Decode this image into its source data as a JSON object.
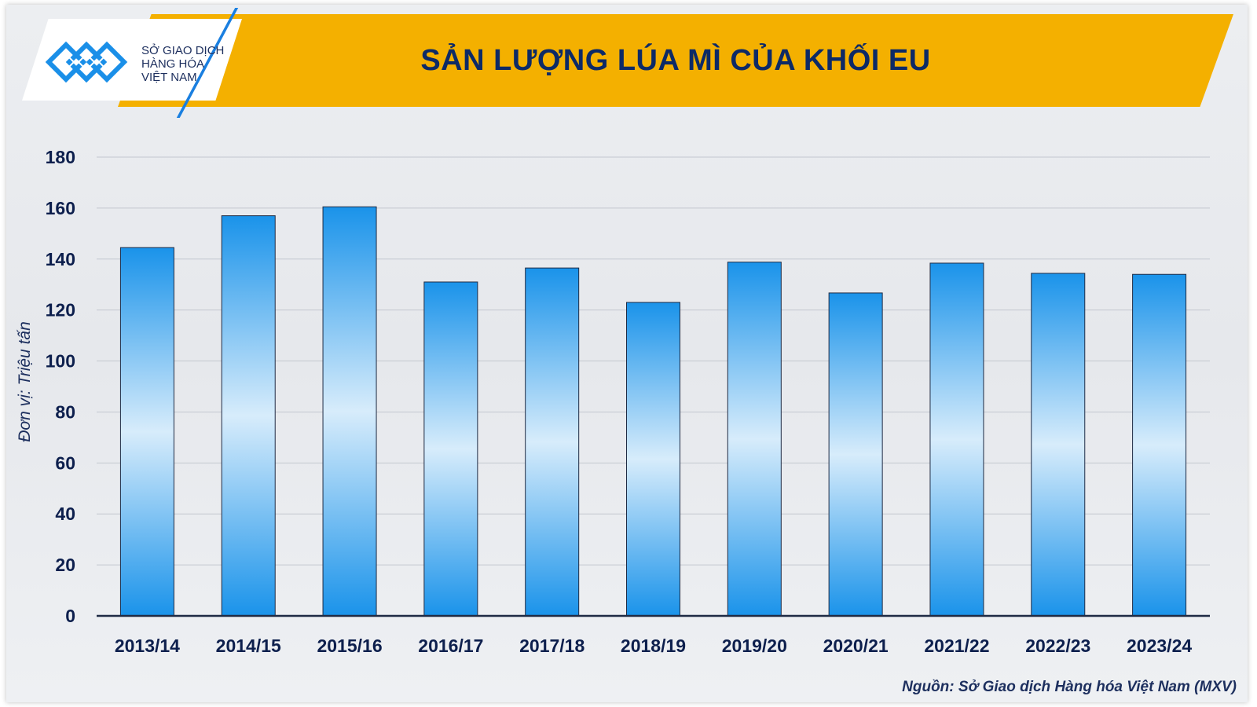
{
  "header": {
    "title": "SẢN LƯỢNG LÚA MÌ CỦA KHỐI EU",
    "logo_lines": [
      "SỞ GIAO DỊCH",
      "HÀNG HÓA",
      "VIỆT NAM"
    ]
  },
  "footer": {
    "source": "Nguồn: Sở Giao dịch Hàng hóa Việt Nam (MXV)"
  },
  "colors": {
    "banner": "#f4b000",
    "title_text": "#0d2a66",
    "bar_dark": "#1a93ea",
    "bar_light": "#d7ecfb",
    "axis_text": "#0d1f4d"
  },
  "chart_data": {
    "type": "bar",
    "title": "SẢN LƯỢNG LÚA MÌ CỦA KHỐI EU",
    "ylabel": "Đơn vị: Triệu tấn",
    "xlabel": "",
    "categories": [
      "2013/14",
      "2014/15",
      "2015/16",
      "2016/17",
      "2017/18",
      "2018/19",
      "2019/20",
      "2020/21",
      "2021/22",
      "2022/23",
      "2023/24"
    ],
    "values": [
      144.5,
      157,
      160.5,
      131,
      136.5,
      123,
      138.8,
      126.7,
      138.4,
      134.4,
      134
    ],
    "ylim": [
      0,
      180
    ],
    "yticks": [
      0,
      20,
      40,
      60,
      80,
      100,
      120,
      140,
      160,
      180
    ],
    "grid": true,
    "legend": "none"
  }
}
